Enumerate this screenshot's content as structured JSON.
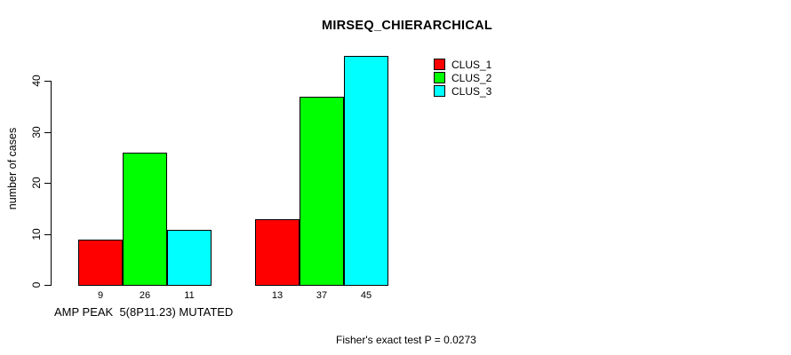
{
  "chart_data": {
    "type": "bar",
    "title": "MIRSEQ_CHIERARCHICAL",
    "ylabel": "number of cases",
    "xlabel": "",
    "ylim": [
      0,
      46
    ],
    "yticks": [
      0,
      10,
      20,
      30,
      40
    ],
    "grid": false,
    "legend_position": "top-right",
    "groups": [
      {
        "label": "AMP PEAK  5(8P11.23) MUTATED"
      },
      {
        "label": ""
      }
    ],
    "series": [
      {
        "name": "CLUS_1",
        "color": "#ff0000",
        "values": [
          9,
          13
        ]
      },
      {
        "name": "CLUS_2",
        "color": "#00ff00",
        "values": [
          26,
          37
        ]
      },
      {
        "name": "CLUS_3",
        "color": "#00ffff",
        "values": [
          11,
          45
        ]
      }
    ],
    "bar_value_labels": [
      [
        9,
        26,
        11
      ],
      [
        13,
        37,
        45
      ]
    ],
    "footnote": "Fisher's exact test P = 0.0273"
  }
}
